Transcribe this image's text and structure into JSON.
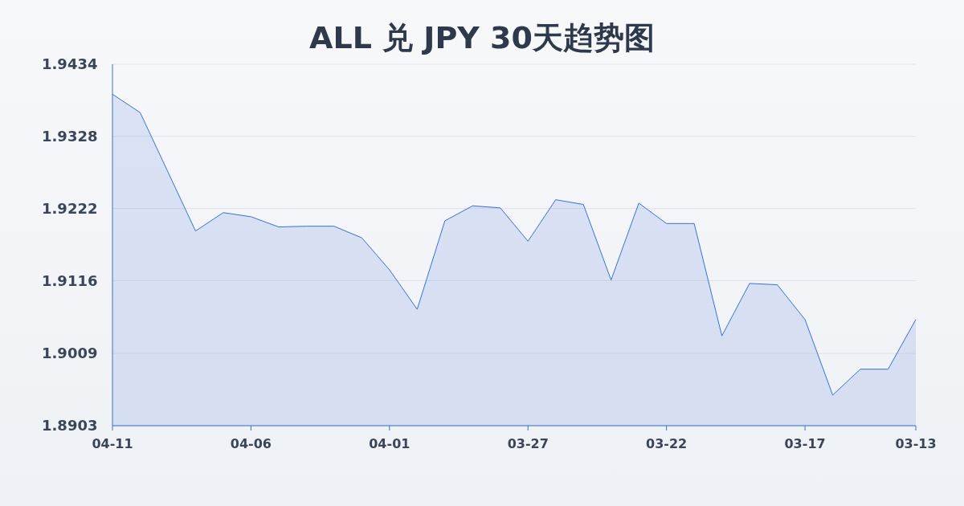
{
  "chart_data": {
    "type": "area",
    "title": "ALL 兑 JPY 30天趋势图",
    "categories": [
      "04-11",
      null,
      null,
      null,
      null,
      "04-06",
      null,
      null,
      null,
      null,
      "04-01",
      null,
      null,
      null,
      null,
      "03-27",
      null,
      null,
      null,
      null,
      "03-22",
      null,
      null,
      null,
      null,
      "03-17",
      null,
      null,
      null,
      "03-13"
    ],
    "series": [
      {
        "color": "#3a6fd8",
        "values": [
          1.939,
          1.9363,
          1.9276,
          1.9189,
          1.9216,
          1.921,
          1.9195,
          1.9196,
          1.9196,
          1.9179,
          1.9132,
          1.9074,
          1.9204,
          1.9226,
          1.9223,
          1.9174,
          1.9235,
          1.9228,
          1.9117,
          1.923,
          1.92,
          1.92,
          1.9035,
          1.9112,
          1.911,
          1.9059,
          1.8948,
          1.8986,
          1.8986,
          1.9059
        ]
      }
    ],
    "ylim": [
      1.8903,
      1.9434
    ],
    "yticks": [
      1.8903,
      1.9009,
      1.9116,
      1.9222,
      1.9328,
      1.9434
    ],
    "grid": "y"
  }
}
